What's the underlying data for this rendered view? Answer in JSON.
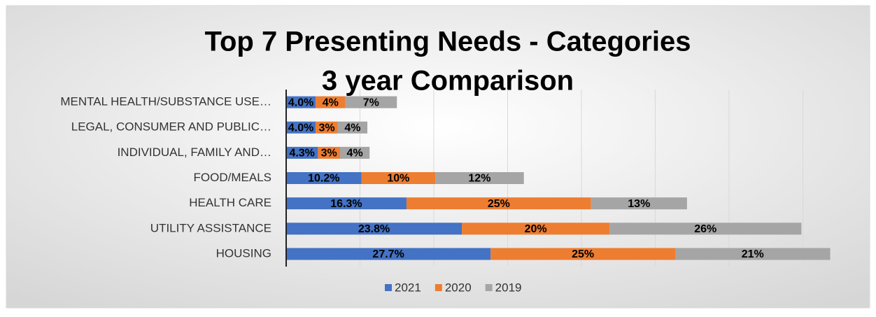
{
  "chart_data": {
    "type": "stacked_bar_horizontal",
    "title": [
      "Top 7 Presenting Needs - Categories",
      "3 year Comparison"
    ],
    "categories": [
      "MENTAL HEALTH/SUBSTANCE USE…",
      "LEGAL, CONSUMER AND PUBLIC…",
      "INDIVIDUAL, FAMILY AND…",
      "FOOD/MEALS",
      "HEALTH CARE",
      "UTILITY ASSISTANCE",
      "HOUSING"
    ],
    "series": [
      {
        "name": "2021",
        "color": "#4472c4",
        "values": [
          4.0,
          4.0,
          4.3,
          10.2,
          16.3,
          23.8,
          27.7
        ],
        "value_labels": [
          "4.0%",
          "4.0%",
          "4.3%",
          "10.2%",
          "16.3%",
          "23.8%",
          "27.7%"
        ]
      },
      {
        "name": "2020",
        "color": "#ed7d31",
        "values": [
          4,
          3,
          3,
          10,
          25,
          20,
          25
        ],
        "value_labels": [
          "4%",
          "3%",
          "3%",
          "10%",
          "25%",
          "20%",
          "25%"
        ]
      },
      {
        "name": "2019",
        "color": "#a5a5a5",
        "values": [
          7,
          4,
          4,
          12,
          13,
          26,
          21
        ],
        "value_labels": [
          "7%",
          "4%",
          "4%",
          "12%",
          "13%",
          "26%",
          "21%"
        ]
      }
    ],
    "xlim": [
      0,
      80
    ],
    "xticks": [
      0,
      10,
      20,
      30,
      40,
      50,
      60,
      70
    ],
    "grid": true,
    "legend": "bottom"
  }
}
